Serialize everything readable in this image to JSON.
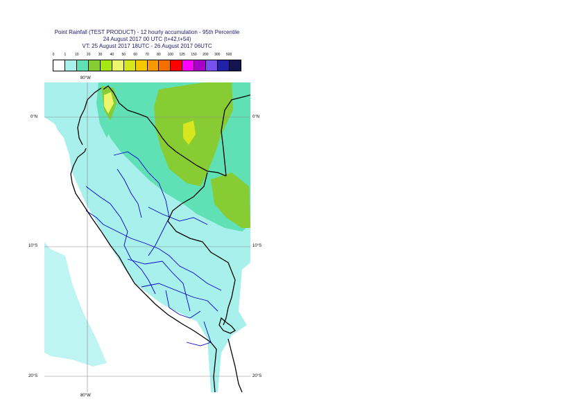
{
  "title": {
    "line1": "Point Rainfall (TEST PRODUCT) - 12 hourly accumulation - 95th Percentile",
    "line2": "24 August 2017 00 UTC (t+42,t+54)",
    "line3": "VT: 25 August 2017 18UTC - 26 August 2017 06UTC"
  },
  "legend": {
    "labels": [
      "0",
      "1",
      "10",
      "20",
      "30",
      "40",
      "50",
      "60",
      "70",
      "80",
      "100",
      "125",
      "150",
      "200",
      "300",
      "500"
    ],
    "colors": [
      "#ffffff",
      "#a8f0ec",
      "#5fe0b5",
      "#88cc33",
      "#a6e614",
      "#ecf56b",
      "#d8e61e",
      "#f5c800",
      "#f59a00",
      "#f56e00",
      "#ff0000",
      "#ff00ff",
      "#a800c8",
      "#7850f0",
      "#2020a8",
      "#141450"
    ]
  },
  "map": {
    "lon_labels": {
      "top": "80°W",
      "bottom": "80°W"
    },
    "lat_labels": {
      "left": [
        "0°N",
        "10°S",
        "20°S"
      ],
      "right": [
        "0°N",
        "10°S",
        "20°S"
      ]
    }
  },
  "colors": {
    "coastline": "#000000",
    "borders": "#0000cc",
    "graticule": "#888888"
  }
}
